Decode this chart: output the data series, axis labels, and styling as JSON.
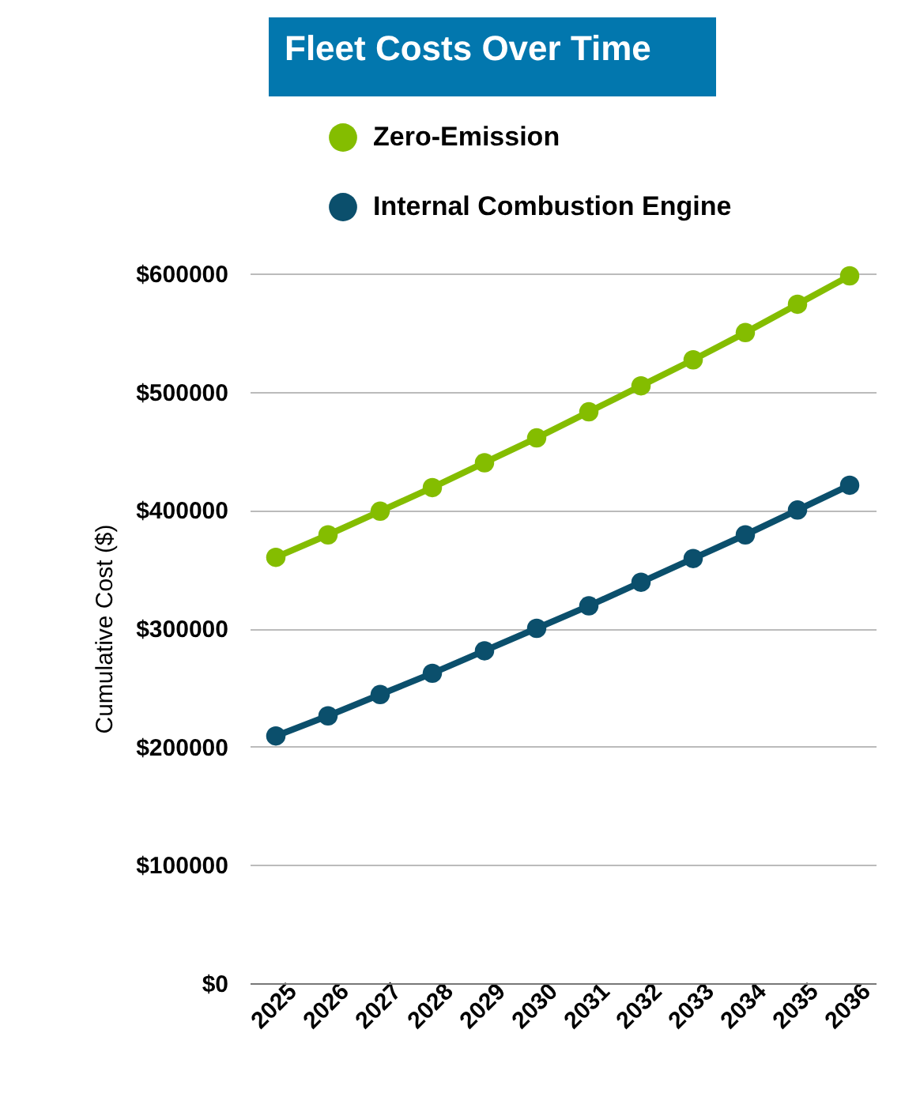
{
  "chart_data": {
    "type": "line",
    "title": "Fleet Costs Over Time",
    "ylabel": "Cumulative Cost ($)",
    "categories": [
      "2025",
      "2026",
      "2027",
      "2028",
      "2029",
      "2030",
      "2031",
      "2032",
      "2033",
      "2034",
      "2035",
      "2036"
    ],
    "series": [
      {
        "name": "Zero-Emission",
        "color": "#84bd00",
        "values": [
          360000,
          379000,
          399000,
          419000,
          440000,
          461000,
          483000,
          505000,
          527000,
          550000,
          574000,
          598000
        ]
      },
      {
        "name": "Internal Combustion Engine",
        "color": "#0b4f6c",
        "values": [
          209000,
          226000,
          244000,
          262000,
          281000,
          300000,
          319000,
          339000,
          359000,
          379000,
          400000,
          421000
        ]
      }
    ],
    "ylim": [
      0,
      600000
    ],
    "yticks": [
      {
        "value": 0,
        "label": "$0"
      },
      {
        "value": 100000,
        "label": "$100000"
      },
      {
        "value": 200000,
        "label": "$200000"
      },
      {
        "value": 300000,
        "label": "$300000"
      },
      {
        "value": 400000,
        "label": "$400000"
      },
      {
        "value": 500000,
        "label": "$500000"
      },
      {
        "value": 600000,
        "label": "$600000"
      }
    ],
    "grid": "y",
    "legend": "top",
    "marker": "circle",
    "line_style": "solid"
  }
}
